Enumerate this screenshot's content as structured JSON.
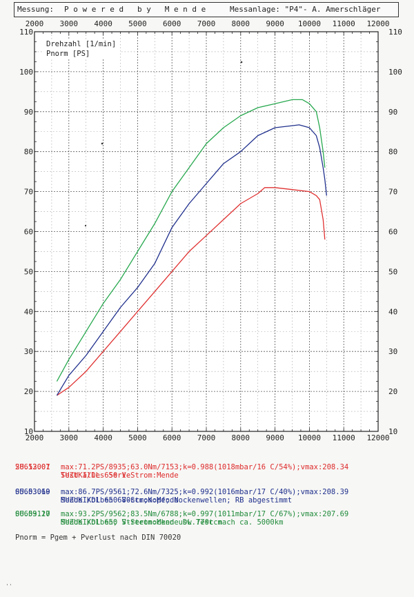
{
  "header": {
    "measurement_label": "Messung:",
    "title": "P o w e r e d   b y   M e n d e",
    "facility": "Messanlage: \"P4\"- A. Amerschläger"
  },
  "chart_data": {
    "type": "line",
    "x_label": "Drehzahl [1/min]",
    "y_label": "Pnorm [PS]",
    "x_min": 2000,
    "x_max": 12000,
    "y_min": 10,
    "y_max": 110,
    "x_ticks": [
      "2000",
      "3000",
      "4000",
      "5000",
      "6000",
      "7000",
      "8000",
      "9000",
      "10000",
      "11000",
      "12000"
    ],
    "y_ticks": [
      "10",
      "20",
      "30",
      "40",
      "50",
      "60",
      "70",
      "80",
      "90",
      "100",
      "110"
    ],
    "grid": true,
    "series": [
      {
        "name": "SU653001",
        "color": "#e03030",
        "points": [
          [
            2650,
            19
          ],
          [
            3000,
            21
          ],
          [
            3500,
            25
          ],
          [
            4000,
            30
          ],
          [
            4500,
            35
          ],
          [
            5000,
            40
          ],
          [
            5500,
            45
          ],
          [
            6000,
            50
          ],
          [
            6500,
            55
          ],
          [
            7000,
            59
          ],
          [
            7500,
            63
          ],
          [
            8000,
            67
          ],
          [
            8500,
            69.5
          ],
          [
            8700,
            71
          ],
          [
            9000,
            71
          ],
          [
            9500,
            70.5
          ],
          [
            10000,
            70
          ],
          [
            10200,
            69
          ],
          [
            10300,
            68
          ],
          [
            10400,
            63
          ],
          [
            10450,
            58
          ]
        ]
      },
      {
        "name": "SU653069",
        "color": "#1f2f8c",
        "points": [
          [
            2650,
            19
          ],
          [
            3000,
            24
          ],
          [
            3500,
            29
          ],
          [
            4000,
            35
          ],
          [
            4500,
            41
          ],
          [
            5000,
            46
          ],
          [
            5500,
            52
          ],
          [
            6000,
            61
          ],
          [
            6500,
            67
          ],
          [
            7000,
            72
          ],
          [
            7500,
            77
          ],
          [
            8000,
            80
          ],
          [
            8500,
            84
          ],
          [
            9000,
            86
          ],
          [
            9500,
            86.5
          ],
          [
            9700,
            86.7
          ],
          [
            10000,
            86
          ],
          [
            10200,
            84
          ],
          [
            10300,
            81
          ],
          [
            10400,
            76
          ],
          [
            10450,
            73
          ],
          [
            10500,
            69
          ]
        ]
      },
      {
        "name": "SU653127",
        "color": "#27a84e",
        "points": [
          [
            2650,
            22.5
          ],
          [
            3000,
            28
          ],
          [
            3500,
            35
          ],
          [
            4000,
            42
          ],
          [
            4500,
            48
          ],
          [
            5000,
            55
          ],
          [
            5500,
            62
          ],
          [
            6000,
            70
          ],
          [
            6500,
            76
          ],
          [
            7000,
            82
          ],
          [
            7500,
            86
          ],
          [
            8000,
            89
          ],
          [
            8500,
            91
          ],
          [
            9000,
            92
          ],
          [
            9500,
            93
          ],
          [
            9800,
            93
          ],
          [
            10000,
            92
          ],
          [
            10200,
            90
          ],
          [
            10300,
            86
          ],
          [
            10400,
            80
          ],
          [
            10450,
            76
          ]
        ]
      }
    ]
  },
  "runs": [
    {
      "id": "SU653001",
      "date": "28.12.07",
      "engine": "SUZUKI/DL 650 V-Strom:Mende",
      "result": "max:71.2PS/8935;63.0Nm/7153;k=0.988(1018mbar/16 C/54%);vmax:208.34",
      "note": "Test alles Serie"
    },
    {
      "id": "SU653069",
      "date": "05.03.10",
      "engine": "SUZUKI/DL 650 V-Strom:Mende",
      "result": "max:86.7PS/9561;72.6Nm/7325;k=0.992(1016mbar/17 C/40%);vmax:208.39",
      "note": "Mende Kolben 680ccm;Kopf; Nockenwellen; RB abgestimmt"
    },
    {
      "id": "SU653127",
      "date": "06.09.10",
      "engine": "SUZUKI/DL 650 V-Strom:Mende DL 770ccm",
      "result": "max:93.2PS/9562;83.5Nm/6788;k=0.997(1011mbar/17 C/67%);vmax:207.69",
      "note": "Mende Kolben; Streetnocken usw.Test nach ca. 5000km"
    }
  ],
  "footnote": "Pnorm = Pgem + Pverlust nach DIN 70020",
  "corner_mark": "''"
}
